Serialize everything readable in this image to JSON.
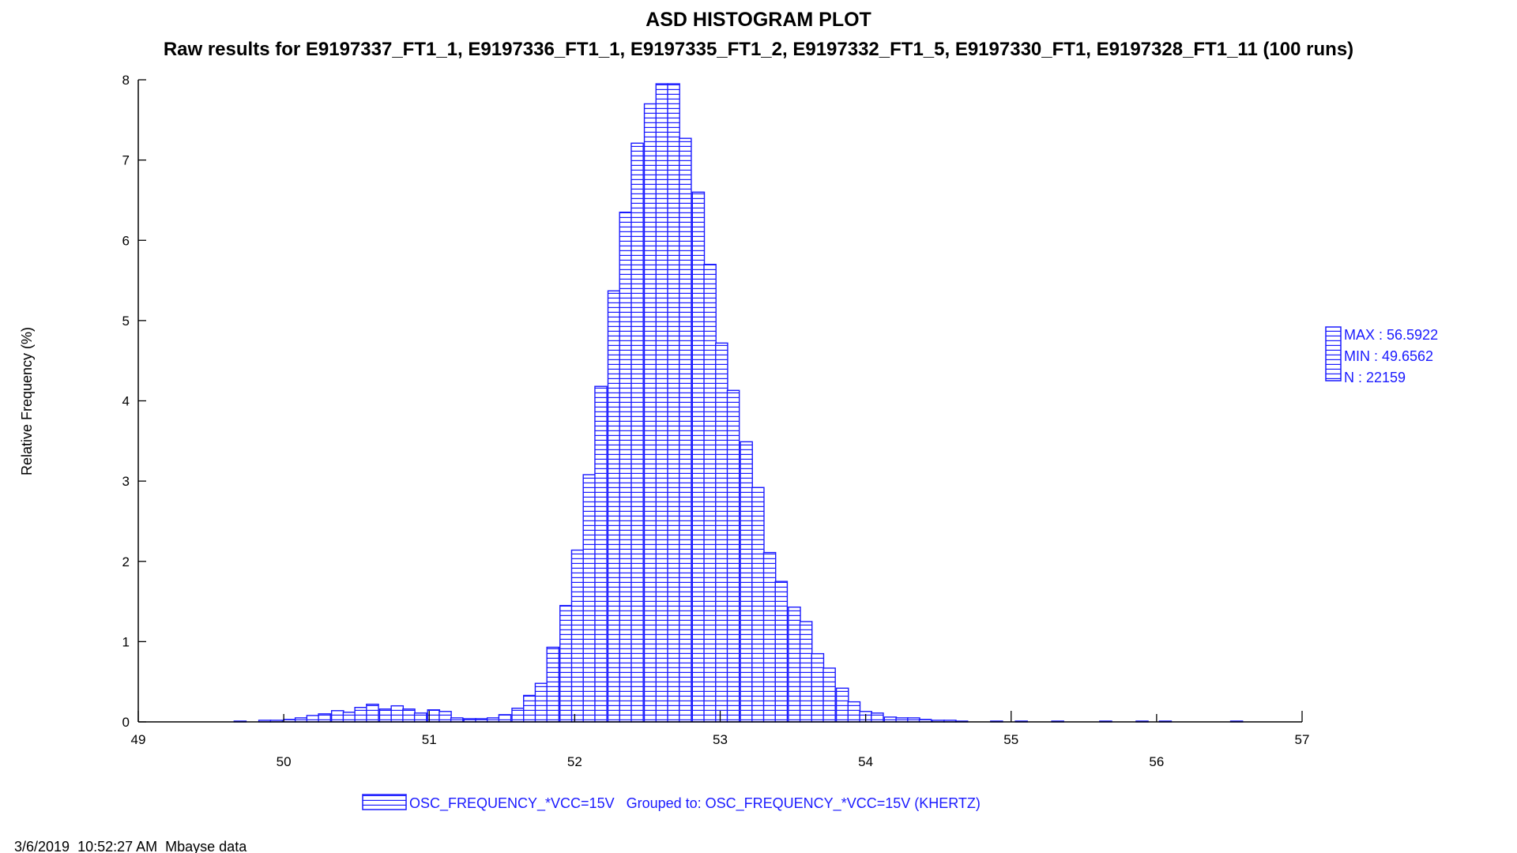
{
  "chart_data": {
    "type": "bar",
    "title": "ASD HISTOGRAM PLOT",
    "subtitle": "Raw results for E9197337_FT1_1, E9197336_FT1_1, E9197335_FT1_2, E9197332_FT1_5, E9197330_FT1, E9197328_FT1_11 (100 runs)",
    "xlabel": "",
    "ylabel": "Relative Frequency (%)",
    "xlim": [
      49,
      57
    ],
    "ylim": [
      0,
      8
    ],
    "x_ticks_upper": [
      "49",
      "51",
      "53",
      "55",
      "57"
    ],
    "x_ticks_lower": [
      "50",
      "52",
      "54",
      "56"
    ],
    "y_ticks": [
      "0",
      "1",
      "2",
      "3",
      "4",
      "5",
      "6",
      "7",
      "8"
    ],
    "bin_width": 0.0825,
    "bins": [
      {
        "x": 49.7,
        "y": 0.01
      },
      {
        "x": 49.87,
        "y": 0.02
      },
      {
        "x": 49.95,
        "y": 0.02
      },
      {
        "x": 50.04,
        "y": 0.03
      },
      {
        "x": 50.12,
        "y": 0.05
      },
      {
        "x": 50.2,
        "y": 0.08
      },
      {
        "x": 50.28,
        "y": 0.1
      },
      {
        "x": 50.37,
        "y": 0.14
      },
      {
        "x": 50.45,
        "y": 0.12
      },
      {
        "x": 50.53,
        "y": 0.18
      },
      {
        "x": 50.61,
        "y": 0.22
      },
      {
        "x": 50.7,
        "y": 0.16
      },
      {
        "x": 50.78,
        "y": 0.2
      },
      {
        "x": 50.86,
        "y": 0.16
      },
      {
        "x": 50.94,
        "y": 0.11
      },
      {
        "x": 51.03,
        "y": 0.15
      },
      {
        "x": 51.11,
        "y": 0.13
      },
      {
        "x": 51.19,
        "y": 0.05
      },
      {
        "x": 51.28,
        "y": 0.04
      },
      {
        "x": 51.36,
        "y": 0.04
      },
      {
        "x": 51.44,
        "y": 0.05
      },
      {
        "x": 51.52,
        "y": 0.09
      },
      {
        "x": 51.61,
        "y": 0.17
      },
      {
        "x": 51.69,
        "y": 0.33
      },
      {
        "x": 51.77,
        "y": 0.48
      },
      {
        "x": 51.85,
        "y": 0.93
      },
      {
        "x": 51.94,
        "y": 1.45
      },
      {
        "x": 52.02,
        "y": 2.14
      },
      {
        "x": 52.1,
        "y": 3.08
      },
      {
        "x": 52.18,
        "y": 4.18
      },
      {
        "x": 52.27,
        "y": 5.37
      },
      {
        "x": 52.35,
        "y": 6.35
      },
      {
        "x": 52.43,
        "y": 7.21
      },
      {
        "x": 52.52,
        "y": 7.7
      },
      {
        "x": 52.6,
        "y": 7.95
      },
      {
        "x": 52.68,
        "y": 7.95
      },
      {
        "x": 52.76,
        "y": 7.27
      },
      {
        "x": 52.85,
        "y": 6.6
      },
      {
        "x": 52.93,
        "y": 5.7
      },
      {
        "x": 53.01,
        "y": 4.72
      },
      {
        "x": 53.09,
        "y": 4.13
      },
      {
        "x": 53.18,
        "y": 3.49
      },
      {
        "x": 53.26,
        "y": 2.92
      },
      {
        "x": 53.34,
        "y": 2.11
      },
      {
        "x": 53.42,
        "y": 1.75
      },
      {
        "x": 53.51,
        "y": 1.43
      },
      {
        "x": 53.59,
        "y": 1.25
      },
      {
        "x": 53.67,
        "y": 0.85
      },
      {
        "x": 53.75,
        "y": 0.67
      },
      {
        "x": 53.84,
        "y": 0.42
      },
      {
        "x": 53.92,
        "y": 0.25
      },
      {
        "x": 54.0,
        "y": 0.13
      },
      {
        "x": 54.08,
        "y": 0.11
      },
      {
        "x": 54.17,
        "y": 0.06
      },
      {
        "x": 54.25,
        "y": 0.05
      },
      {
        "x": 54.33,
        "y": 0.05
      },
      {
        "x": 54.41,
        "y": 0.03
      },
      {
        "x": 54.5,
        "y": 0.02
      },
      {
        "x": 54.58,
        "y": 0.02
      },
      {
        "x": 54.66,
        "y": 0.01
      },
      {
        "x": 54.9,
        "y": 0.01
      },
      {
        "x": 55.07,
        "y": 0.01
      },
      {
        "x": 55.32,
        "y": 0.01
      },
      {
        "x": 55.65,
        "y": 0.01
      },
      {
        "x": 55.9,
        "y": 0.01
      },
      {
        "x": 56.06,
        "y": 0.01
      },
      {
        "x": 56.55,
        "y": 0.01
      }
    ],
    "stats": [
      "MAX : 56.5922",
      "MIN : 49.6562",
      "N : 22159"
    ],
    "legend_label": "OSC_FREQUENCY_*VCC=15V   Grouped to: OSC_FREQUENCY_*VCC=15V (KHERTZ)",
    "legend_placement": "bottom-center",
    "stats_placement": "right",
    "grid": false,
    "bar_color": "#1a1aff",
    "bar_fill": "horizontal-hatch"
  },
  "footer": {
    "timestamp": "3/6/2019  10:52:27 AM  Mbayse data"
  }
}
